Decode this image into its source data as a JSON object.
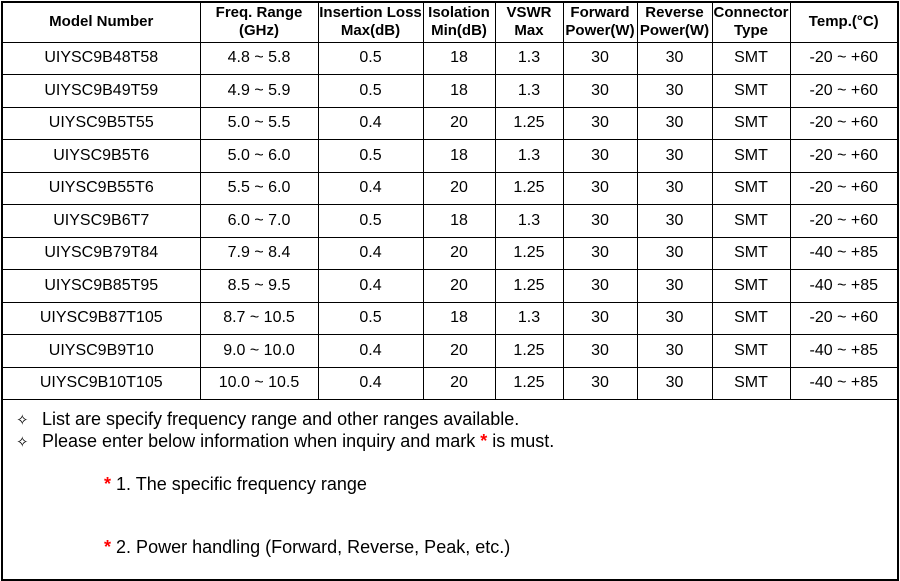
{
  "table": {
    "columns": [
      {
        "id": "model-number",
        "lines": [
          "Model Number"
        ]
      },
      {
        "id": "freq-range",
        "lines": [
          "Freq. Range",
          "(GHz)"
        ]
      },
      {
        "id": "insertion-loss",
        "lines": [
          "Insertion Loss",
          "Max(dB)"
        ]
      },
      {
        "id": "isolation",
        "lines": [
          "Isolation",
          "Min(dB)"
        ]
      },
      {
        "id": "vswr",
        "lines": [
          "VSWR",
          "Max"
        ]
      },
      {
        "id": "forward-power",
        "lines": [
          "Forward",
          "Power(W)"
        ]
      },
      {
        "id": "reverse-power",
        "lines": [
          "Reverse",
          "Power(W)"
        ]
      },
      {
        "id": "connector-type",
        "lines": [
          "Connector",
          "Type"
        ]
      },
      {
        "id": "temperature",
        "lines": [
          "Temp.(°C)"
        ]
      }
    ],
    "rows": [
      [
        "UIYSC9B48T58",
        "4.8 ~ 5.8",
        "0.5",
        "18",
        "1.3",
        "30",
        "30",
        "SMT",
        "-20 ~ +60"
      ],
      [
        "UIYSC9B49T59",
        "4.9 ~ 5.9",
        "0.5",
        "18",
        "1.3",
        "30",
        "30",
        "SMT",
        "-20 ~ +60"
      ],
      [
        "UIYSC9B5T55",
        "5.0 ~ 5.5",
        "0.4",
        "20",
        "1.25",
        "30",
        "30",
        "SMT",
        "-20 ~ +60"
      ],
      [
        "UIYSC9B5T6",
        "5.0 ~ 6.0",
        "0.5",
        "18",
        "1.3",
        "30",
        "30",
        "SMT",
        "-20 ~ +60"
      ],
      [
        "UIYSC9B55T6",
        "5.5 ~ 6.0",
        "0.4",
        "20",
        "1.25",
        "30",
        "30",
        "SMT",
        "-20 ~ +60"
      ],
      [
        "UIYSC9B6T7",
        "6.0 ~ 7.0",
        "0.5",
        "18",
        "1.3",
        "30",
        "30",
        "SMT",
        "-20 ~ +60"
      ],
      [
        "UIYSC9B79T84",
        "7.9 ~ 8.4",
        "0.4",
        "20",
        "1.25",
        "30",
        "30",
        "SMT",
        "-40 ~ +85"
      ],
      [
        "UIYSC9B85T95",
        "8.5 ~ 9.5",
        "0.4",
        "20",
        "1.25",
        "30",
        "30",
        "SMT",
        "-40 ~ +85"
      ],
      [
        "UIYSC9B87T105",
        "8.7 ~ 10.5",
        "0.5",
        "18",
        "1.3",
        "30",
        "30",
        "SMT",
        "-20 ~ +60"
      ],
      [
        "UIYSC9B9T10",
        "9.0 ~ 10.0",
        "0.4",
        "20",
        "1.25",
        "30",
        "30",
        "SMT",
        "-40 ~ +85"
      ],
      [
        "UIYSC9B10T105",
        "10.0 ~ 10.5",
        "0.4",
        "20",
        "1.25",
        "30",
        "30",
        "SMT",
        "-40 ~ +85"
      ]
    ]
  },
  "notes": {
    "bullet_char": "✧",
    "line1": "List are specify frequency range and other ranges available.",
    "line2_before": "Please enter below information when inquiry and mark",
    "line2_star": "*",
    "line2_after": "is must.",
    "line3_star": "*",
    "line3_text": "1. The specific frequency range",
    "line4_star": "*",
    "line4_text": "2. Power handling (Forward, Reverse, Peak, etc.)"
  },
  "colors": {
    "text": "#000000",
    "border": "#000000",
    "asterisk_red": "#ff0000",
    "background": "#ffffff"
  }
}
